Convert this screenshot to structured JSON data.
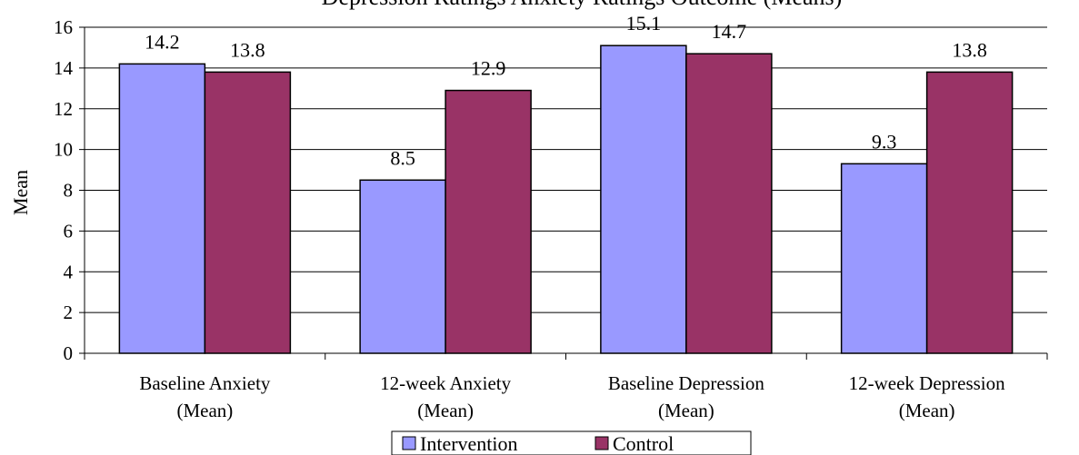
{
  "chart_data": {
    "type": "bar",
    "title": "Depression Ratings Anxiety Ratings Outcome (Means)",
    "ylabel": "Mean",
    "xlabel": "",
    "ylim": [
      0,
      16
    ],
    "yticks": [
      0,
      2,
      4,
      6,
      8,
      10,
      12,
      14,
      16
    ],
    "grid": true,
    "legend_position": "bottom",
    "categories": [
      [
        "Baseline Anxiety",
        "(Mean)"
      ],
      [
        "12-week Anxiety",
        "(Mean)"
      ],
      [
        "Baseline Depression",
        "(Mean)"
      ],
      [
        "12-week Depression",
        "(Mean)"
      ]
    ],
    "series": [
      {
        "name": "Intervention",
        "color": "#9999ff",
        "values": [
          14.2,
          8.5,
          15.1,
          9.3
        ],
        "labels": [
          "14.2",
          "8.5",
          "15.1",
          "9.3"
        ]
      },
      {
        "name": "Control",
        "color": "#993366",
        "values": [
          13.8,
          12.9,
          14.7,
          13.8
        ],
        "labels": [
          "13.8",
          "12.9",
          "14.7",
          "13.8"
        ]
      }
    ]
  }
}
